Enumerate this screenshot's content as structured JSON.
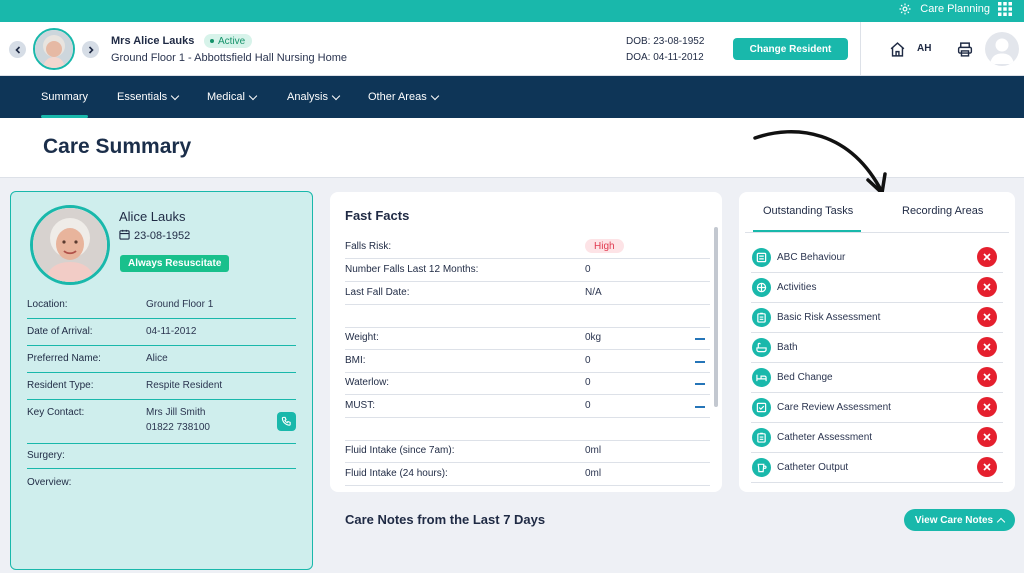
{
  "topbar": {
    "label": "Care Planning",
    "gear_icon": "gear-icon",
    "grid_icon": "apps-grid-icon"
  },
  "header": {
    "resident_name": "Mrs Alice Lauks",
    "status": "Active",
    "location": "Ground Floor 1 - Abbottsfield Hall Nursing Home",
    "dob": "DOB: 23-08-1952",
    "doa": "DOA: 04-11-2012",
    "change_button": "Change Resident",
    "user_initials": "AH"
  },
  "nav": {
    "items": [
      {
        "label": "Summary",
        "active": true
      },
      {
        "label": "Essentials",
        "dropdown": true
      },
      {
        "label": "Medical",
        "dropdown": true
      },
      {
        "label": "Analysis",
        "dropdown": true
      },
      {
        "label": "Other Areas",
        "dropdown": true
      }
    ]
  },
  "page": {
    "title": "Care Summary"
  },
  "profile": {
    "name": "Alice Lauks",
    "dob": "23-08-1952",
    "resus_badge": "Always Resuscitate",
    "rows": [
      {
        "label": "Location:",
        "value": "Ground Floor 1"
      },
      {
        "label": "Date of Arrival:",
        "value": "04-11-2012"
      },
      {
        "label": "Preferred Name:",
        "value": "Alice"
      },
      {
        "label": "Resident Type:",
        "value": "Respite Resident"
      },
      {
        "label": "Key Contact:",
        "value": "Mrs Jill Smith",
        "value2": "01822 738100"
      },
      {
        "label": "Surgery:",
        "value": ""
      },
      {
        "label": "Overview:",
        "value": ""
      }
    ]
  },
  "fast_facts": {
    "title": "Fast Facts",
    "rows": [
      {
        "label": "Falls Risk:",
        "value": "High",
        "badge": true
      },
      {
        "label": "Number Falls Last 12 Months:",
        "value": "0"
      },
      {
        "label": "Last Fall Date:",
        "value": "N/A"
      },
      {
        "label": "Weight:",
        "value": "0kg"
      },
      {
        "label": "BMI:",
        "value": "0"
      },
      {
        "label": "Waterlow:",
        "value": "0"
      },
      {
        "label": "MUST:",
        "value": "0"
      },
      {
        "label": "Fluid Intake (since 7am):",
        "value": "0ml"
      },
      {
        "label": "Fluid Intake (24 hours):",
        "value": "0ml"
      }
    ]
  },
  "tasks": {
    "tabs": [
      {
        "label": "Outstanding Tasks",
        "active": true
      },
      {
        "label": "Recording Areas"
      }
    ],
    "items": [
      {
        "label": "ABC Behaviour",
        "icon": "list-icon"
      },
      {
        "label": "Activities",
        "icon": "ball-icon"
      },
      {
        "label": "Basic Risk Assessment",
        "icon": "clipboard-icon"
      },
      {
        "label": "Bath",
        "icon": "bath-icon"
      },
      {
        "label": "Bed Change",
        "icon": "bed-icon"
      },
      {
        "label": "Care Review Assessment",
        "icon": "review-icon"
      },
      {
        "label": "Catheter Assessment",
        "icon": "clipboard-icon"
      },
      {
        "label": "Catheter Output",
        "icon": "cup-icon"
      }
    ]
  },
  "care_notes": {
    "title": "Care Notes from the Last 7 Days",
    "view_button": "View Care Notes"
  },
  "colors": {
    "teal": "#19b8ab",
    "navy": "#0e3557",
    "danger": "#e5202e",
    "profile_bg": "#cfeeed"
  }
}
